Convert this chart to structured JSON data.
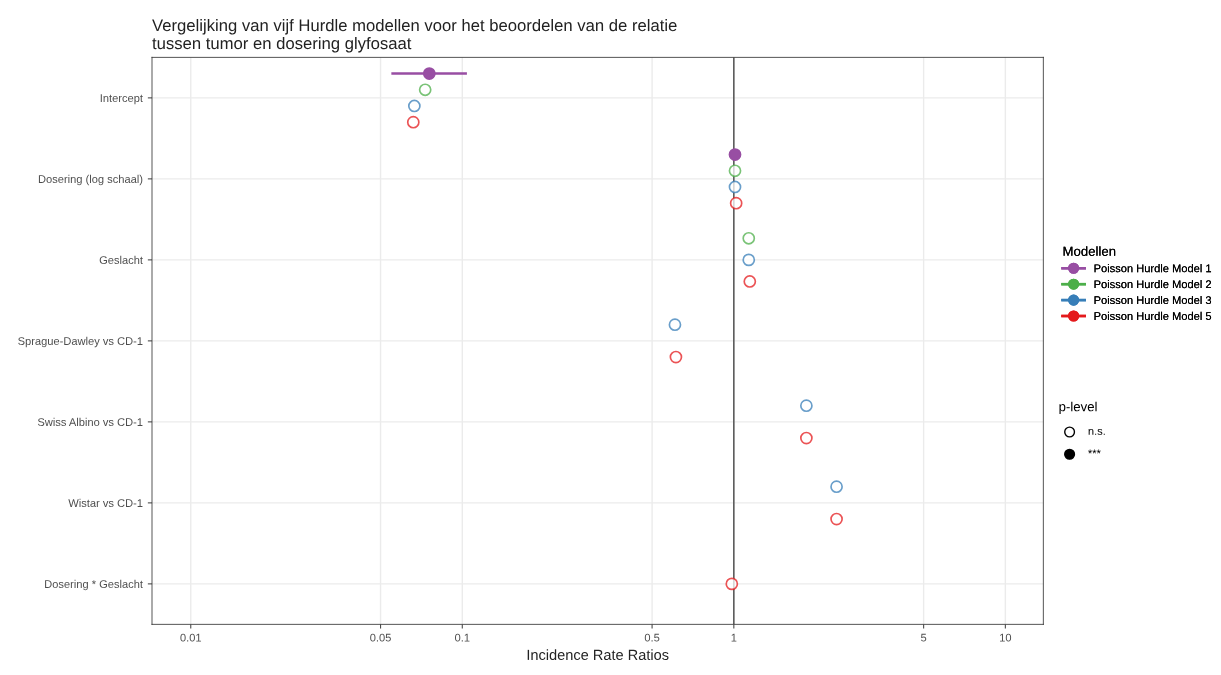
{
  "chart_data": {
    "type": "scatter",
    "orientation": "horizontal",
    "title": "Vergelijking van vijf Hurdle modellen voor het beoordelen van de relatie\ntussen tumor en dosering glyfosaat",
    "xlabel": "Incidence Rate Ratios",
    "legend_title": "Modellen",
    "categories": [
      "Intercept",
      "Dosering (log schaal)",
      "Geslacht",
      "Sprague-Dawley vs CD-1",
      "Swiss Albino vs CD-1",
      "Wistar vs CD-1",
      "Dosering * Geslacht"
    ],
    "series": [
      {
        "name": "Poisson Hurdle Model 1",
        "color": "#984ea3",
        "marker": "circle",
        "values": [
          0.0756,
          1.01,
          null,
          null,
          null,
          null,
          null
        ],
        "errors": [
          [
            0.0548,
            0.104
          ],
          null,
          null,
          null,
          null,
          null,
          null
        ]
      },
      {
        "name": "Poisson Hurdle Model 2",
        "color": "#4daf4a",
        "marker": "open circle",
        "values": [
          0.073,
          1.01,
          1.135,
          null,
          null,
          null,
          null
        ]
      },
      {
        "name": "Poisson Hurdle Model 3",
        "color": "#377eb8",
        "marker": "open circle",
        "values": [
          0.0666,
          1.01,
          1.135,
          0.607,
          1.85,
          2.39,
          null
        ]
      },
      {
        "name": "Poisson Hurdle Model 5",
        "color": "#e41a1c",
        "marker": "open circle",
        "values": [
          0.066,
          1.02,
          1.145,
          0.612,
          1.85,
          2.39,
          0.983
        ]
      }
    ],
    "annotations": [
      "p-level",
      "n.s.",
      "***"
    ],
    "log": "x",
    "xlim": [
      0.0072,
      13.8
    ],
    "xticks": [
      0.01,
      0.05,
      0.1,
      0.5,
      1,
      5,
      10
    ],
    "ref_lines": [
      {
        "axis": "x",
        "value": 1,
        "color": "#555555"
      }
    ],
    "grid": true,
    "legend": "right"
  }
}
